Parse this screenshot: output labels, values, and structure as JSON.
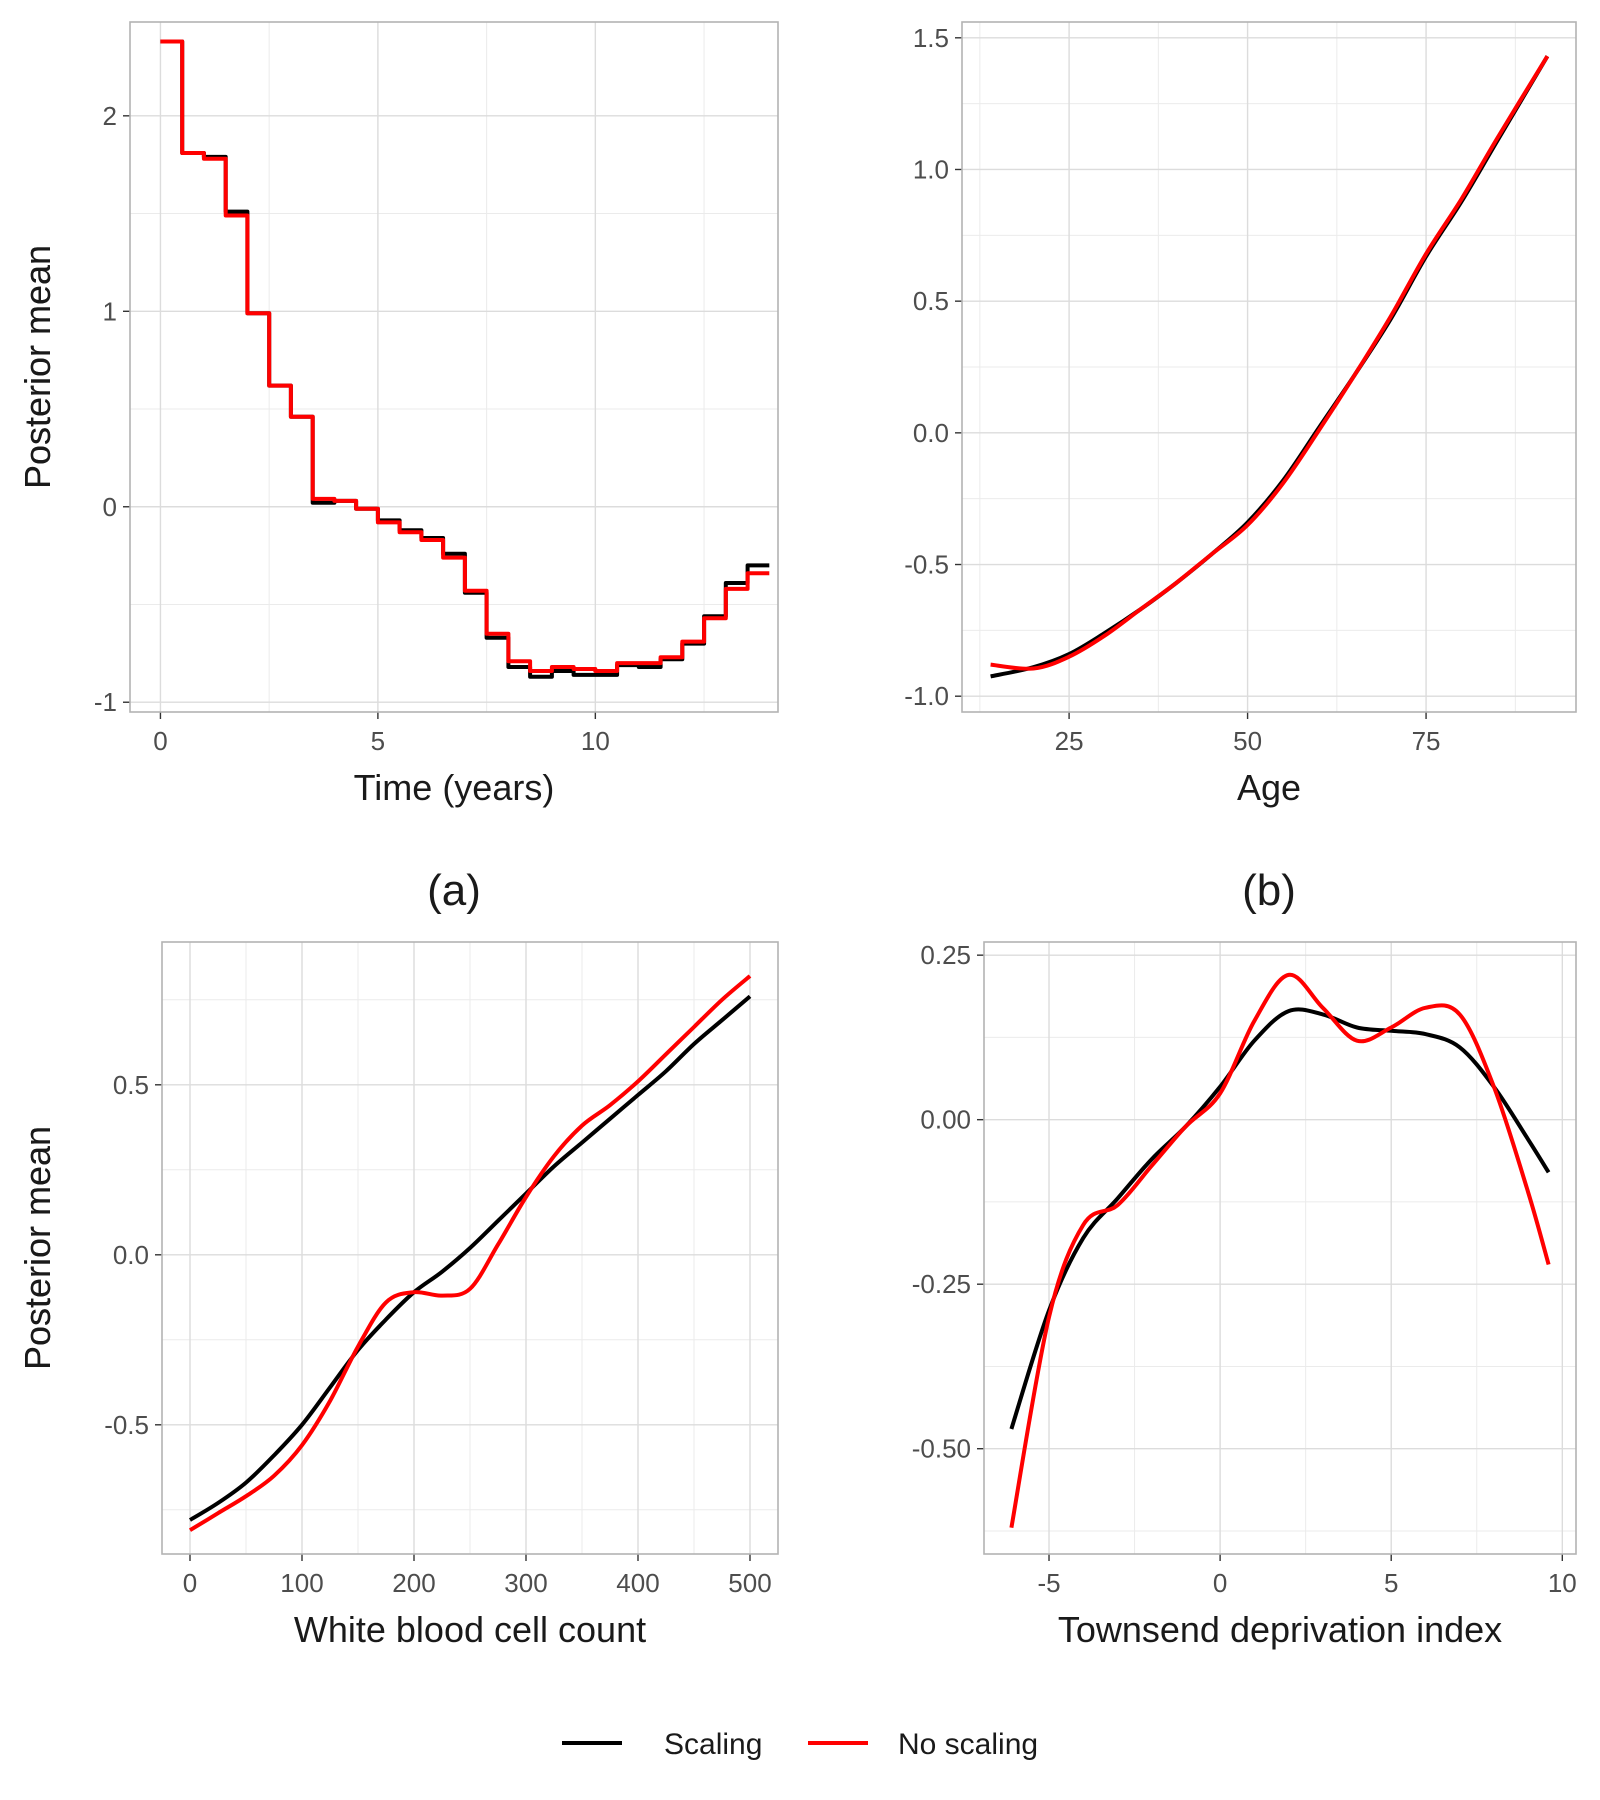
{
  "chart_data": [
    {
      "type": "line",
      "step": true,
      "panel_label": "(a)",
      "xlabel": "Time (years)",
      "ylabel": "Posterior mean",
      "xlim": [
        -0.7,
        14.2
      ],
      "ylim": [
        -1.05,
        2.48
      ],
      "xticks": [
        0,
        5,
        10
      ],
      "xtick_labels": [
        "0",
        "5",
        "10"
      ],
      "yticks": [
        -1,
        0,
        1,
        2
      ],
      "ytick_labels": [
        "-1",
        "0",
        "1",
        "2"
      ],
      "grid": true,
      "series": [
        {
          "name": "Scaling",
          "color": "#000000",
          "x": [
            0,
            0.5,
            1,
            1.5,
            2,
            2.5,
            3,
            3.5,
            4,
            4.5,
            5,
            5.5,
            6,
            6.5,
            7,
            7.5,
            8,
            8.5,
            9,
            9.5,
            10,
            10.5,
            11,
            11.5,
            12,
            12.5,
            13,
            13.5
          ],
          "y": [
            2.38,
            1.81,
            1.79,
            1.51,
            0.99,
            0.62,
            0.46,
            0.02,
            0.03,
            -0.01,
            -0.07,
            -0.12,
            -0.16,
            -0.24,
            -0.44,
            -0.67,
            -0.82,
            -0.87,
            -0.84,
            -0.86,
            -0.86,
            -0.81,
            -0.82,
            -0.78,
            -0.7,
            -0.56,
            -0.39,
            -0.3
          ]
        },
        {
          "name": "No scaling",
          "color": "#ff0000",
          "x": [
            0,
            0.5,
            1,
            1.5,
            2,
            2.5,
            3,
            3.5,
            4,
            4.5,
            5,
            5.5,
            6,
            6.5,
            7,
            7.5,
            8,
            8.5,
            9,
            9.5,
            10,
            10.5,
            11,
            11.5,
            12,
            12.5,
            13,
            13.5
          ],
          "y": [
            2.38,
            1.81,
            1.78,
            1.49,
            0.99,
            0.62,
            0.46,
            0.04,
            0.03,
            -0.01,
            -0.08,
            -0.13,
            -0.17,
            -0.26,
            -0.43,
            -0.65,
            -0.79,
            -0.84,
            -0.82,
            -0.83,
            -0.84,
            -0.8,
            -0.8,
            -0.77,
            -0.69,
            -0.57,
            -0.42,
            -0.34
          ]
        }
      ]
    },
    {
      "type": "line",
      "panel_label": "(b)",
      "xlabel": "Age",
      "ylabel": "Posterior mean",
      "xlim": [
        10,
        96
      ],
      "ylim": [
        -1.06,
        1.56
      ],
      "xticks": [
        25,
        50,
        75
      ],
      "xtick_labels": [
        "25",
        "50",
        "75"
      ],
      "yticks": [
        -1.0,
        -0.5,
        0.0,
        0.5,
        1.0,
        1.5
      ],
      "ytick_labels": [
        "-1.0",
        "-0.5",
        "0.0",
        "0.5",
        "1.0",
        "1.5"
      ],
      "grid": true,
      "series": [
        {
          "name": "Scaling",
          "color": "#000000",
          "x": [
            14,
            20,
            25,
            30,
            35,
            40,
            45,
            50,
            55,
            60,
            65,
            70,
            75,
            80,
            85,
            92
          ],
          "y": [
            -0.925,
            -0.89,
            -0.84,
            -0.76,
            -0.67,
            -0.57,
            -0.46,
            -0.34,
            -0.18,
            0.02,
            0.22,
            0.43,
            0.67,
            0.88,
            1.11,
            1.43
          ]
        },
        {
          "name": "No scaling",
          "color": "#ff0000",
          "x": [
            14,
            20,
            25,
            30,
            35,
            40,
            45,
            50,
            55,
            60,
            65,
            70,
            75,
            80,
            85,
            92
          ],
          "y": [
            -0.88,
            -0.895,
            -0.85,
            -0.77,
            -0.67,
            -0.57,
            -0.46,
            -0.35,
            -0.19,
            0.01,
            0.22,
            0.44,
            0.68,
            0.89,
            1.12,
            1.43
          ]
        }
      ]
    },
    {
      "type": "line",
      "xlabel": "White blood cell count",
      "ylabel": "Posterior mean",
      "xlim": [
        -25,
        525
      ],
      "ylim": [
        -0.88,
        0.92
      ],
      "xticks": [
        0,
        100,
        200,
        300,
        400,
        500
      ],
      "xtick_labels": [
        "0",
        "100",
        "200",
        "300",
        "400",
        "500"
      ],
      "yticks": [
        -0.5,
        0.0,
        0.5
      ],
      "ytick_labels": [
        "-0.5",
        "0.0",
        "0.5"
      ],
      "grid": true,
      "series": [
        {
          "name": "Scaling",
          "color": "#000000",
          "x": [
            0,
            25,
            50,
            75,
            100,
            125,
            150,
            175,
            200,
            225,
            250,
            275,
            300,
            325,
            350,
            375,
            400,
            425,
            450,
            475,
            500
          ],
          "y": [
            -0.78,
            -0.73,
            -0.67,
            -0.59,
            -0.5,
            -0.39,
            -0.28,
            -0.19,
            -0.11,
            -0.05,
            0.02,
            0.1,
            0.18,
            0.26,
            0.33,
            0.4,
            0.47,
            0.54,
            0.62,
            0.69,
            0.76
          ]
        },
        {
          "name": "No scaling",
          "color": "#ff0000",
          "x": [
            0,
            25,
            50,
            75,
            100,
            125,
            150,
            175,
            200,
            225,
            250,
            275,
            300,
            325,
            350,
            375,
            400,
            425,
            450,
            475,
            500
          ],
          "y": [
            -0.81,
            -0.76,
            -0.71,
            -0.65,
            -0.56,
            -0.43,
            -0.27,
            -0.14,
            -0.11,
            -0.12,
            -0.1,
            0.03,
            0.17,
            0.29,
            0.38,
            0.44,
            0.51,
            0.59,
            0.67,
            0.75,
            0.82
          ]
        }
      ]
    },
    {
      "type": "line",
      "xlabel": "Townsend deprivation index",
      "ylabel": "Posterior mean",
      "xlim": [
        -6.9,
        10.4
      ],
      "ylim": [
        -0.66,
        0.27
      ],
      "xticks": [
        -5,
        0,
        5,
        10
      ],
      "xtick_labels": [
        "-5",
        "0",
        "5",
        "10"
      ],
      "yticks": [
        -0.5,
        -0.25,
        0.0,
        0.25
      ],
      "ytick_labels": [
        "-0.50",
        "-0.25",
        "0.00",
        "0.25"
      ],
      "grid": true,
      "series": [
        {
          "name": "Scaling",
          "color": "#000000",
          "x": [
            -6.1,
            -5,
            -4,
            -3,
            -2,
            -1,
            0,
            1,
            2,
            3,
            4,
            5,
            6,
            7,
            8,
            9,
            9.6
          ],
          "y": [
            -0.47,
            -0.29,
            -0.18,
            -0.12,
            -0.06,
            -0.01,
            0.05,
            0.12,
            0.165,
            0.16,
            0.14,
            0.135,
            0.13,
            0.11,
            0.05,
            -0.03,
            -0.08
          ]
        },
        {
          "name": "No scaling",
          "color": "#ff0000",
          "x": [
            -6.1,
            -5,
            -4,
            -3,
            -2,
            -1,
            0,
            1,
            2,
            3,
            4,
            5,
            6,
            7,
            8,
            9,
            9.6
          ],
          "y": [
            -0.62,
            -0.3,
            -0.16,
            -0.13,
            -0.07,
            -0.01,
            0.04,
            0.15,
            0.22,
            0.17,
            0.12,
            0.14,
            0.17,
            0.16,
            0.05,
            -0.11,
            -0.22
          ]
        }
      ]
    }
  ],
  "legend": {
    "placement": "bottom",
    "items": [
      {
        "label": "Scaling",
        "color": "#000000"
      },
      {
        "label": "No scaling",
        "color": "#ff0000"
      }
    ]
  }
}
